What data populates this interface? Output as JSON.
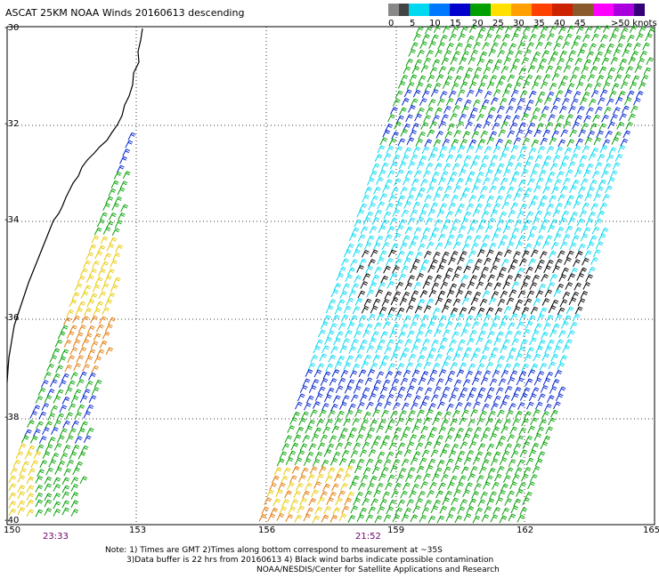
{
  "title": "ASCAT 25KM NOAA Winds 20160613 descending",
  "scale": {
    "labels": [
      "0",
      "5",
      "10",
      "15",
      "20",
      "25",
      "30",
      "35",
      "40",
      "45",
      ">50 knots"
    ],
    "colors": [
      "#555555",
      "#aaaaaa",
      "#00ccff",
      "#0088ff",
      "#0000cc",
      "#00aa00",
      "#ffdd00",
      "#ff9900",
      "#ff3300",
      "#ff0000",
      "#996633",
      "#ff00ff",
      "#8800cc",
      "#4400aa"
    ]
  },
  "axes": {
    "lon_labels": [
      "150",
      "153",
      "156",
      "159",
      "162",
      "165"
    ],
    "lat_labels": [
      "-30",
      "-32",
      "-34",
      "-36",
      "-38",
      "-40"
    ]
  },
  "pass_times": [
    "23:33",
    "21:52"
  ],
  "notes": [
    "Note: 1) Times are GMT 2)Times along bottom correspond to measurement at ~35S",
    "3)Data buffer is 22 hrs from 20160613 4) Black wind barbs indicate possible contamination",
    "NOAA/NESDIS/Center for Satellite Applications and Research"
  ],
  "colors": {
    "calm": "#000000",
    "light": "#00d8f0",
    "moderate": "#0022cc",
    "fresh": "#00a000",
    "strong": "#e8c800",
    "gale": "#e07800",
    "grid": "#000000"
  }
}
